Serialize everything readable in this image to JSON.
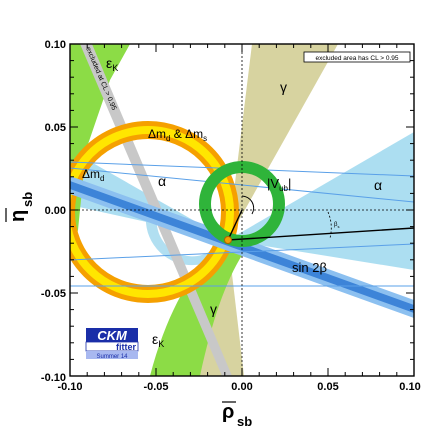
{
  "chart_data": {
    "type": "region-plot",
    "xlim": [
      -0.1,
      0.1
    ],
    "ylim": [
      -0.1,
      0.1
    ],
    "xticks": [
      -0.1,
      -0.05,
      0.0,
      0.05,
      0.1
    ],
    "xtick_labels": [
      "-0.10",
      "-0.05",
      "0.00",
      "0.05",
      "0.10"
    ],
    "yticks": [
      -0.1,
      -0.05,
      0.0,
      0.05,
      0.1
    ],
    "ytick_labels": [
      "-0.10",
      "-0.05",
      "0.00",
      "0.05",
      "0.10"
    ],
    "xlabel_main": "ρ",
    "xlabel_sub": "sb",
    "ylabel_main": "η",
    "ylabel_sub": "sb",
    "legend_note": "excluded area has CL > 0.95",
    "logo": {
      "line1": "CKM",
      "line2": "fitter",
      "line3": "Summer 14"
    },
    "annotations": {
      "dmd_dms": "Δm",
      "dmd_dms_sub1": "d",
      "dmd_dms_amp": " & Δm",
      "dmd_dms_sub2": "s",
      "dmd": "Δm",
      "dmd_sub": "d",
      "epsk_top": "ε",
      "epsk_top_sub": "K",
      "epsk_bottom": "ε",
      "epsk_bottom_sub": "K",
      "excluded_strip": "excluded at CL > 0.95",
      "alpha_left": "α",
      "alpha_right": "α",
      "gamma_top": "γ",
      "gamma_bottom": "γ",
      "vub": "|V",
      "vub_sub": "ub",
      "vub_close": "|",
      "sin2beta": "sin 2β",
      "beta_s": "β",
      "beta_s_sub": "s"
    },
    "best_fit": {
      "x": -0.008,
      "y": -0.018
    },
    "triangle_apex": {
      "x": -0.008,
      "y": -0.018
    },
    "colors": {
      "eps_k": "#8cdc46",
      "dm_outer": "#f5a000",
      "dm_inner": "#ffe600",
      "alpha": "#a8dcf0",
      "gamma": "#d7d3a0",
      "vub": "#2fb43a",
      "sin2beta": "#5aa0e8",
      "sin2beta_core": "#2c6fc8",
      "strip": "#c8c8c8",
      "best_fit": "#f0a000"
    }
  }
}
